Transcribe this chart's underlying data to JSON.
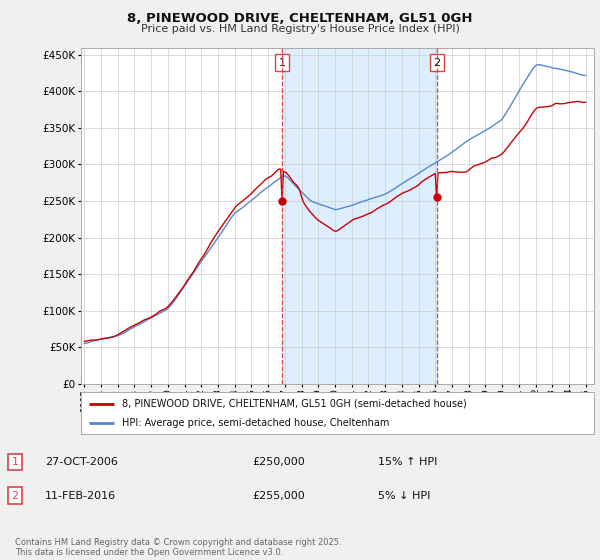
{
  "title_line1": "8, PINEWOOD DRIVE, CHELTENHAM, GL51 0GH",
  "title_line2": "Price paid vs. HM Land Registry's House Price Index (HPI)",
  "legend_line1": "8, PINEWOOD DRIVE, CHELTENHAM, GL51 0GH (semi-detached house)",
  "legend_line2": "HPI: Average price, semi-detached house, Cheltenham",
  "transaction1_date": "27-OCT-2006",
  "transaction1_price": "£250,000",
  "transaction1_hpi": "15% ↑ HPI",
  "transaction2_date": "11-FEB-2016",
  "transaction2_price": "£255,000",
  "transaction2_hpi": "5% ↓ HPI",
  "footer": "Contains HM Land Registry data © Crown copyright and database right 2025.\nThis data is licensed under the Open Government Licence v3.0.",
  "property_color": "#cc0000",
  "hpi_color": "#5588cc",
  "shade_color": "#ddeeff",
  "background_color": "#f0f0f0",
  "plot_bg_color": "#ffffff",
  "grid_color": "#cccccc",
  "vline_color": "#dd4444",
  "ylim": [
    0,
    460000
  ],
  "yticks": [
    0,
    50000,
    100000,
    150000,
    200000,
    250000,
    300000,
    350000,
    400000,
    450000
  ],
  "transaction1_year": 2006.82,
  "transaction2_year": 2016.11,
  "transaction1_price_val": 250000,
  "transaction2_price_val": 255000
}
